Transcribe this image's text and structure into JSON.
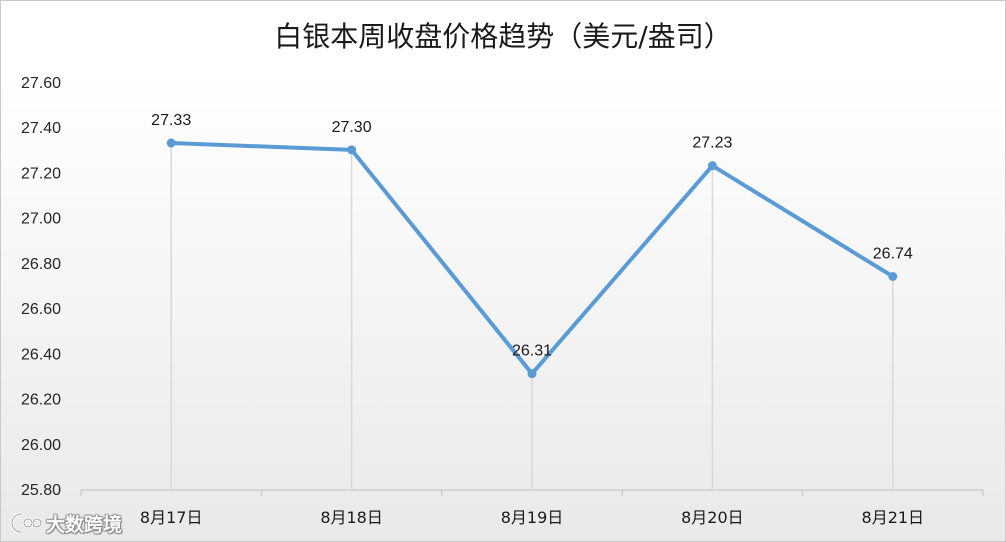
{
  "chart_data": {
    "type": "line",
    "title": "白银本周收盘价格趋势（美元/盎司）",
    "categories": [
      "8月17日",
      "8月18日",
      "8月19日",
      "8月20日",
      "8月21日"
    ],
    "series": [
      {
        "values": [
          27.33,
          27.3,
          26.31,
          27.23,
          26.74
        ],
        "labels": [
          "27.33",
          "27.30",
          "26.31",
          "27.23",
          "26.74"
        ],
        "color": "#5b9bd5"
      }
    ],
    "yticks": [
      "27.60",
      "27.40",
      "27.20",
      "27.00",
      "26.80",
      "26.60",
      "26.40",
      "26.20",
      "26.00",
      "25.80"
    ],
    "ylim": [
      25.8,
      27.6
    ],
    "xlabel": "",
    "ylabel": "",
    "grid": false,
    "drop_lines": true,
    "legend": "none",
    "colors": {
      "line": "#5b9bd5",
      "drop_line": "#d9d9d9",
      "axis": "#d0d0d0"
    }
  },
  "watermark": {
    "text": "大数跨境",
    "icon": "logo-icon"
  }
}
